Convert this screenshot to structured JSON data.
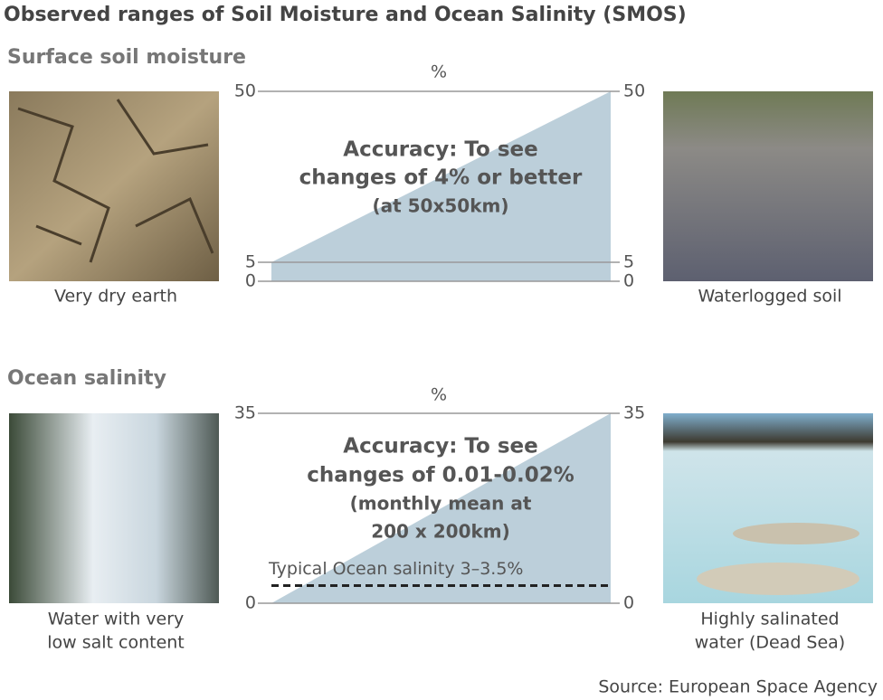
{
  "title": "Observed ranges of Soil Moisture and Ocean Salinity (SMOS)",
  "source": "Source: European Space Agency",
  "chart_data": [
    {
      "type": "area",
      "title": "Surface soil moisture",
      "ylabel": "%",
      "values": [
        5,
        50
      ],
      "color": "#bccfda",
      "ylim": [
        0,
        50
      ],
      "yticks": [
        0,
        5,
        50
      ],
      "grid": true,
      "annotation": [
        "Accuracy: To see",
        "changes of 4% or better",
        "(at 50x50km)"
      ],
      "left_caption": [
        "Very dry earth"
      ],
      "right_caption": [
        "Waterlogged soil"
      ]
    },
    {
      "type": "area",
      "title": "Ocean salinity",
      "ylabel": "%",
      "values": [
        0,
        35
      ],
      "color": "#bccfda",
      "ylim": [
        0,
        35
      ],
      "yticks": [
        0,
        35
      ],
      "grid": true,
      "annotation": [
        "Accuracy: To see",
        "changes of 0.01-0.02%",
        "(monthly mean at",
        "200 x 200km)"
      ],
      "reference_line": {
        "value": 3.25,
        "label": "Typical Ocean salinity 3–3.5%",
        "style": "dashed"
      },
      "left_caption": [
        "Water with very",
        "low salt content"
      ],
      "right_caption": [
        "Highly salinated",
        "water (Dead Sea)"
      ]
    }
  ]
}
